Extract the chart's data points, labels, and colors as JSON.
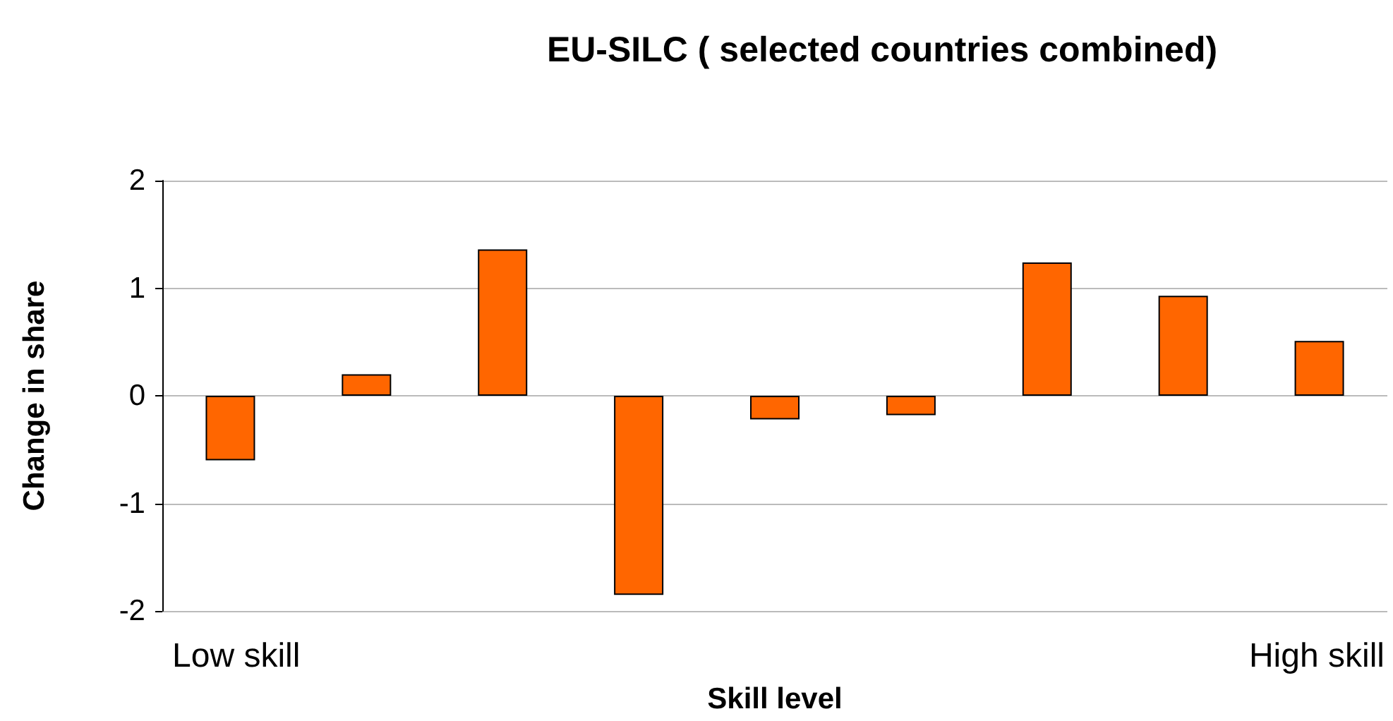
{
  "chart_data": {
    "type": "bar",
    "title": "EU-SILC ( selected countries combined)",
    "xlabel": "Skill level",
    "ylabel": "Change in share",
    "categories": [
      null,
      null,
      null,
      null,
      null,
      null,
      null,
      null,
      null
    ],
    "values": [
      -0.6,
      0.2,
      1.36,
      -1.85,
      -0.22,
      -0.18,
      1.24,
      0.93,
      0.51
    ],
    "color": "#ff6600",
    "ylim": [
      -2,
      2
    ],
    "yticks": [
      -2,
      -1,
      0,
      1,
      2
    ],
    "grid": "y",
    "annotations": [
      "Low skill",
      "High skill"
    ]
  }
}
